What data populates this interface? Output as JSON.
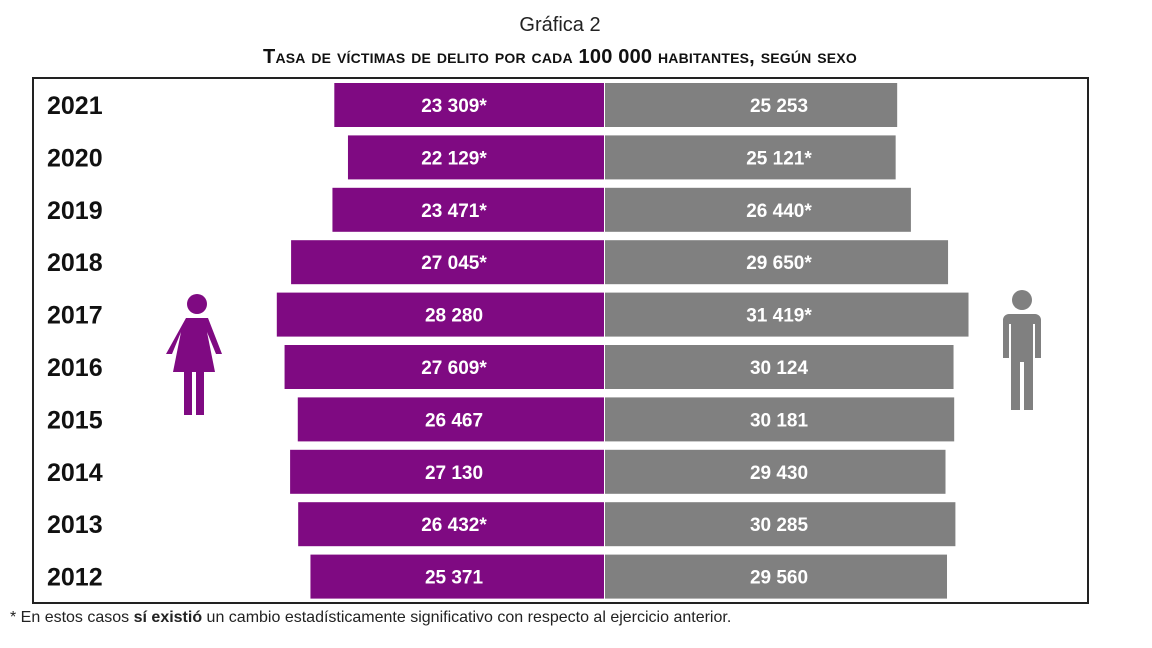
{
  "chart_data": {
    "type": "bar",
    "orientation": "horizontal-diverging",
    "subtitle": "Gráfica 2",
    "title": "Tasa de víctimas de delito por cada 100 000 habitantes, según sexo",
    "categories": [
      "2021",
      "2020",
      "2019",
      "2018",
      "2017",
      "2016",
      "2015",
      "2014",
      "2013",
      "2012"
    ],
    "series": [
      {
        "side": "left",
        "icon": "woman-icon",
        "color": "#7f0a82",
        "values": [
          23309,
          22129,
          23471,
          27045,
          28280,
          27609,
          26467,
          27130,
          26432,
          25371
        ],
        "labels": [
          "23 309*",
          "22 129*",
          "23 471*",
          "27 045*",
          "28 280",
          "27 609*",
          "26 467",
          "27 130",
          "26 432*",
          "25 371"
        ]
      },
      {
        "side": "right",
        "icon": "man-icon",
        "color": "#808080",
        "values": [
          25253,
          25121,
          26440,
          29650,
          31419,
          30124,
          30181,
          29430,
          30285,
          29560
        ],
        "labels": [
          "25 253",
          "25 121*",
          "26 440*",
          "29 650*",
          "31 419*",
          "30 124",
          "30 181",
          "29 430",
          "30 285",
          "29 560"
        ]
      }
    ],
    "grid": false
  },
  "footnote": {
    "pre": "* En estos casos ",
    "bold": "sí existió",
    "post": " un cambio estadísticamente significativo con respecto al ejercicio anterior."
  }
}
